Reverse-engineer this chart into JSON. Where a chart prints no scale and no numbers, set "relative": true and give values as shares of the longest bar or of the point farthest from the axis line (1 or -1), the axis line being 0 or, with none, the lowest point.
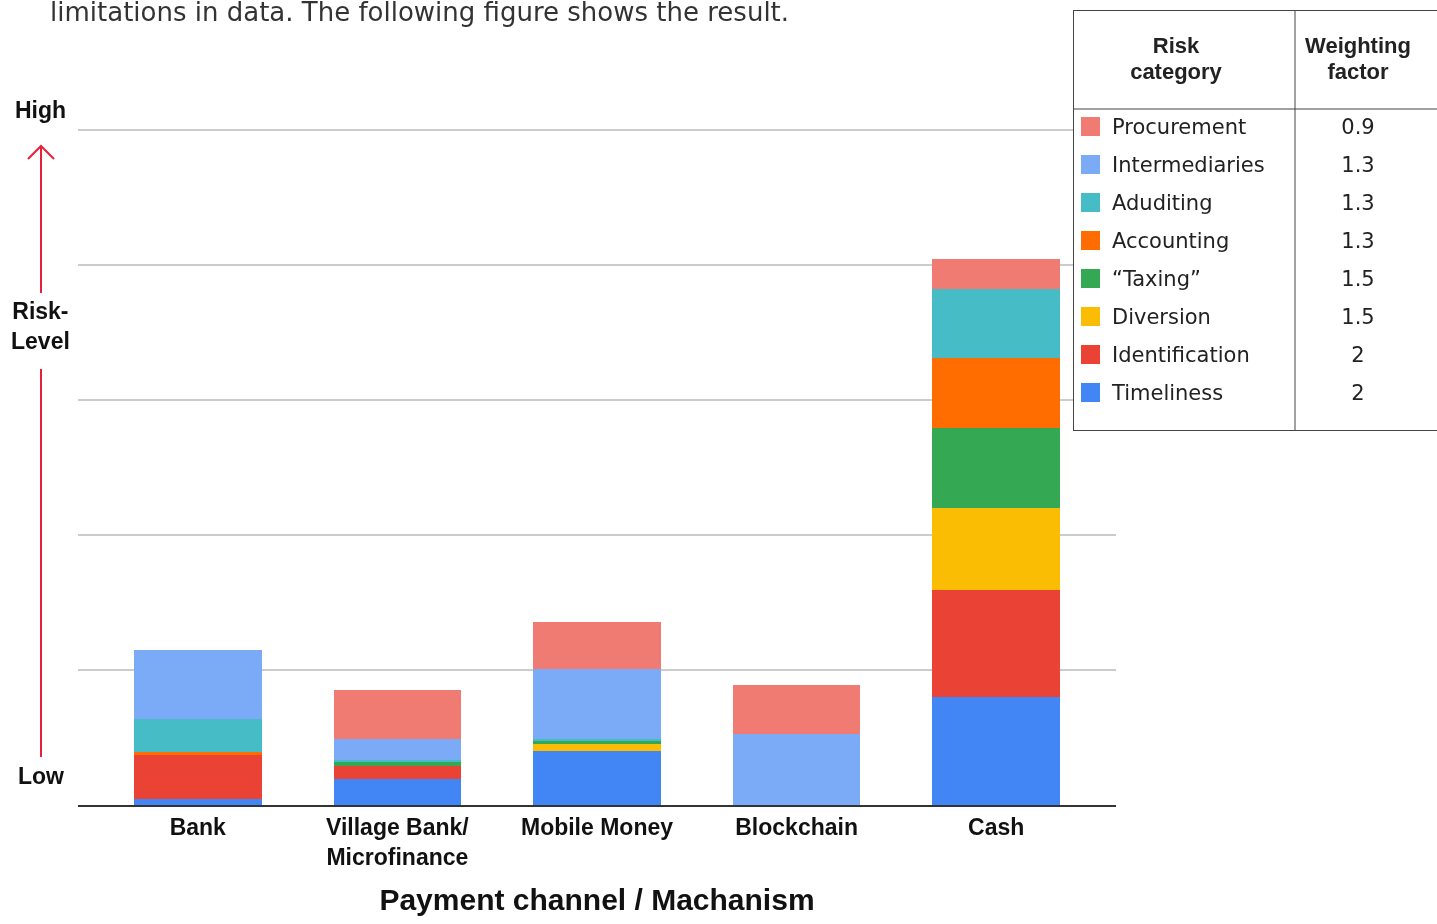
{
  "chart_data": {
    "type": "bar",
    "stacked": true,
    "relative": true,
    "xlabel": "Payment channel / Machanism",
    "ylabel": "Risk-Level",
    "legend_title": "Risk category",
    "legend": "top right",
    "grid": "y",
    "categories": [
      "Bank",
      "Village Bank/ Microfinance",
      "Mobile Money",
      "Blockchain",
      "Cash"
    ],
    "series": [
      {
        "name": "Timeliness",
        "color": "#4285f4",
        "values": [
          0.011,
          0.048,
          0.099,
          0,
          0.198
        ]
      },
      {
        "name": "Identification",
        "color": "#ea4335",
        "values": [
          0.081,
          0.024,
          0,
          0,
          0.196
        ]
      },
      {
        "name": "Diversion",
        "color": "#fbbc04",
        "values": [
          0,
          0,
          0.013,
          0,
          0.15
        ]
      },
      {
        "name": "“Taxing”",
        "color": "#34a853",
        "values": [
          0,
          0.007,
          0.007,
          0,
          0.147
        ]
      },
      {
        "name": "Accounting",
        "color": "#ff6d01",
        "values": [
          0.005,
          0,
          0,
          0,
          0.128
        ]
      },
      {
        "name": "Aduditing",
        "color": "#46bdc6",
        "values": [
          0.06,
          0.004,
          0.002,
          0,
          0.126
        ]
      },
      {
        "name": "Intermediaries",
        "color": "#7baaf7",
        "values": [
          0.126,
          0.038,
          0.128,
          0.13,
          0
        ]
      },
      {
        "name": "Procurement",
        "color": "#f07b72",
        "values": [
          0,
          0.09,
          0.086,
          0.09,
          0.055
        ]
      }
    ],
    "annotations": [
      "limitations in data. The following figure shows the result.",
      "High",
      "Low",
      "Weighting factor",
      "2",
      "2",
      "1.5",
      "1.5",
      "1.3",
      "1.3",
      "1.3",
      "0.9"
    ]
  }
}
